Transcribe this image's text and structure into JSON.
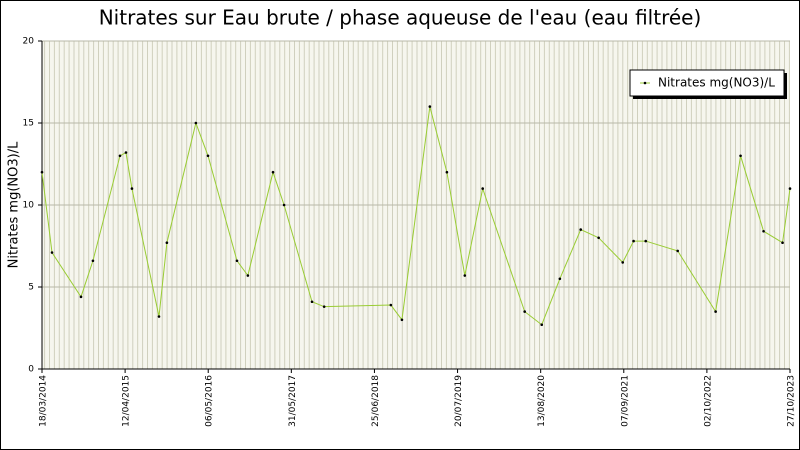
{
  "chart_data": {
    "type": "line",
    "title": "Nitrates sur Eau brute / phase aqueuse de l'eau (eau filtrée)",
    "y_label": "Nitrates mg(NO3)/L",
    "x": [
      "2014-03-18",
      "2014-05-04",
      "2014-09-17",
      "2014-11-12",
      "2015-03-19",
      "2015-04-16",
      "2015-05-14",
      "2015-09-18",
      "2015-10-25",
      "2016-03-09",
      "2016-05-05",
      "2016-09-18",
      "2016-11-08",
      "2017-03-06",
      "2017-04-27",
      "2017-09-05",
      "2017-11-01",
      "2018-09-10",
      "2018-11-01",
      "2019-03-12",
      "2019-05-31",
      "2019-08-23",
      "2019-11-15",
      "2020-05-30",
      "2020-08-18",
      "2020-11-11",
      "2021-02-17",
      "2021-05-12",
      "2021-09-02",
      "2021-10-23",
      "2021-12-19",
      "2022-05-18",
      "2022-11-12",
      "2023-03-09",
      "2023-06-25",
      "2023-09-22",
      "2023-10-27"
    ],
    "series": [
      {
        "name": "Nitrates mg(NO3)/L",
        "color": "#99cc33",
        "values": [
          12,
          7.1,
          4.4,
          6.6,
          13.0,
          13.2,
          11.0,
          3.2,
          7.7,
          15.0,
          13.0,
          6.6,
          5.7,
          12.0,
          10.0,
          4.1,
          3.8,
          3.9,
          3.0,
          16.0,
          12.0,
          5.7,
          11.0,
          3.5,
          2.7,
          5.5,
          8.5,
          8.0,
          6.5,
          7.8,
          7.8,
          7.2,
          3.5,
          13.0,
          8.4,
          7.7,
          11.0
        ]
      }
    ],
    "xlim": [
      "2014-03-18",
      "2023-10-27"
    ],
    "xticks": [
      {
        "value": "2014-03-18",
        "label": "18/03/2014"
      },
      {
        "value": "2015-04-12",
        "label": "12/04/2015"
      },
      {
        "value": "2016-05-06",
        "label": "06/05/2016"
      },
      {
        "value": "2017-05-31",
        "label": "31/05/2017"
      },
      {
        "value": "2018-06-25",
        "label": "25/06/2018"
      },
      {
        "value": "2019-07-20",
        "label": "20/07/2019"
      },
      {
        "value": "2020-08-13",
        "label": "13/08/2020"
      },
      {
        "value": "2021-09-07",
        "label": "07/09/2021"
      },
      {
        "value": "2022-10-02",
        "label": "02/10/2022"
      },
      {
        "value": "2023-10-27",
        "label": "27/10/2023"
      }
    ],
    "ylim": [
      0,
      20
    ],
    "yticks": [
      0,
      5,
      10,
      15,
      20
    ],
    "grid": true,
    "legend_position": "top-right"
  }
}
